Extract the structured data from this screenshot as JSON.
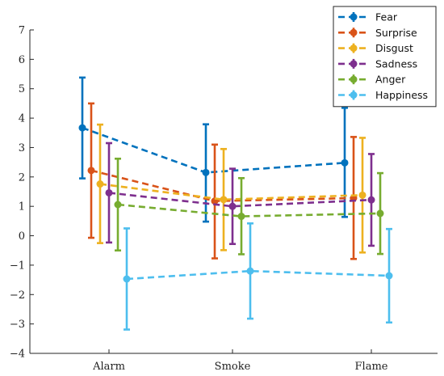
{
  "chart_data": {
    "type": "line",
    "title": "",
    "xlabel": "",
    "ylabel": "",
    "categories": [
      "Alarm",
      "Smoke",
      "Flame"
    ],
    "ylim": [
      -4,
      7
    ],
    "yticks": [
      -4,
      -3,
      -2,
      -1,
      0,
      1,
      2,
      3,
      4,
      5,
      6,
      7
    ],
    "yticklabels": [
      "−4",
      "−3",
      "−2",
      "−1",
      "0",
      "1",
      "2",
      "3",
      "4",
      "5",
      "6",
      "7"
    ],
    "grid": false,
    "legend_position": "top-right",
    "series": [
      {
        "name": "Fear",
        "color": "#0072BD",
        "values": [
          3.67,
          2.15,
          2.48
        ],
        "lower": [
          1.95,
          0.48,
          0.64
        ],
        "upper": [
          5.38,
          3.79,
          4.35
        ]
      },
      {
        "name": "Surprise",
        "color": "#D95319",
        "values": [
          2.22,
          1.18,
          1.28
        ],
        "lower": [
          -0.07,
          -0.77,
          -0.79
        ],
        "upper": [
          4.5,
          3.1,
          3.36
        ]
      },
      {
        "name": "Disgust",
        "color": "#EDB120",
        "values": [
          1.76,
          1.23,
          1.38
        ],
        "lower": [
          -0.25,
          -0.49,
          -0.57
        ],
        "upper": [
          3.78,
          2.95,
          3.33
        ]
      },
      {
        "name": "Sadness",
        "color": "#7E2F8E",
        "values": [
          1.46,
          1.0,
          1.22
        ],
        "lower": [
          -0.23,
          -0.28,
          -0.34
        ],
        "upper": [
          3.15,
          2.28,
          2.78
        ]
      },
      {
        "name": "Anger",
        "color": "#77AC30",
        "values": [
          1.06,
          0.66,
          0.76
        ],
        "lower": [
          -0.5,
          -0.63,
          -0.62
        ],
        "upper": [
          2.62,
          1.96,
          2.13
        ]
      },
      {
        "name": "Happiness",
        "color": "#4DBEEE",
        "values": [
          -1.47,
          -1.2,
          -1.36
        ],
        "lower": [
          -3.19,
          -2.82,
          -2.95
        ],
        "upper": [
          0.25,
          0.42,
          0.23
        ]
      }
    ]
  }
}
